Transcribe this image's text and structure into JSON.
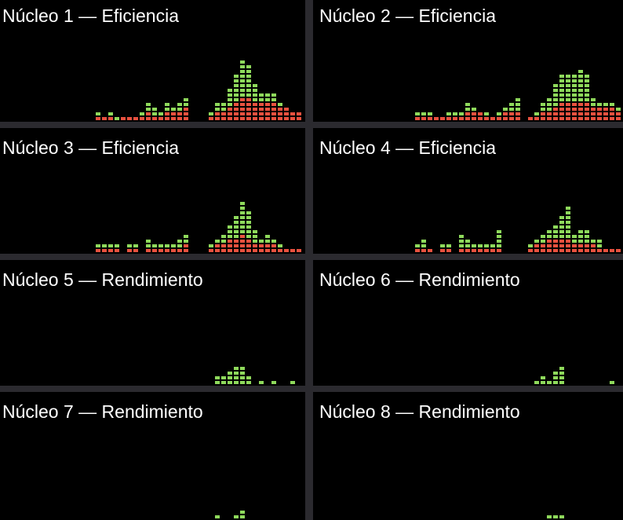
{
  "colors": {
    "user": "#8ed95b",
    "system": "#e8513f",
    "background": "#000000",
    "separator": "#2b2a2f"
  },
  "panels": [
    {
      "title": "Núcleo 1 — Eficiencia",
      "history": [
        [
          0,
          0
        ],
        [
          0,
          0
        ],
        [
          0,
          0
        ],
        [
          0,
          0
        ],
        [
          0,
          0
        ],
        [
          0,
          0
        ],
        [
          0,
          0
        ],
        [
          0,
          0
        ],
        [
          0,
          0
        ],
        [
          0,
          0
        ],
        [
          0,
          0
        ],
        [
          0,
          0
        ],
        [
          0,
          0
        ],
        [
          0,
          0
        ],
        [
          0,
          0
        ],
        [
          1,
          1
        ],
        [
          1,
          0
        ],
        [
          1,
          1
        ],
        [
          0,
          1
        ],
        [
          1,
          0
        ],
        [
          1,
          0
        ],
        [
          1,
          0
        ],
        [
          1,
          1
        ],
        [
          2,
          2
        ],
        [
          1,
          2
        ],
        [
          1,
          1
        ],
        [
          2,
          2
        ],
        [
          2,
          1
        ],
        [
          2,
          2
        ],
        [
          3,
          2
        ],
        [
          0,
          0
        ],
        [
          0,
          0
        ],
        [
          0,
          0
        ],
        [
          1,
          1
        ],
        [
          2,
          2
        ],
        [
          2,
          2
        ],
        [
          3,
          4
        ],
        [
          4,
          6
        ],
        [
          5,
          8
        ],
        [
          5,
          7
        ],
        [
          4,
          4
        ],
        [
          4,
          2
        ],
        [
          4,
          2
        ],
        [
          4,
          2
        ],
        [
          3,
          1
        ],
        [
          3,
          0
        ],
        [
          2,
          0
        ],
        [
          2,
          0
        ],
        [
          1,
          0
        ]
      ]
    },
    {
      "title": "Núcleo 2 — Eficiencia",
      "history": [
        [
          0,
          0
        ],
        [
          0,
          0
        ],
        [
          0,
          0
        ],
        [
          0,
          0
        ],
        [
          0,
          0
        ],
        [
          0,
          0
        ],
        [
          0,
          0
        ],
        [
          0,
          0
        ],
        [
          0,
          0
        ],
        [
          0,
          0
        ],
        [
          0,
          0
        ],
        [
          0,
          0
        ],
        [
          0,
          0
        ],
        [
          0,
          0
        ],
        [
          0,
          0
        ],
        [
          0,
          0
        ],
        [
          1,
          1
        ],
        [
          1,
          1
        ],
        [
          1,
          1
        ],
        [
          1,
          0
        ],
        [
          1,
          0
        ],
        [
          1,
          1
        ],
        [
          1,
          1
        ],
        [
          1,
          1
        ],
        [
          2,
          2
        ],
        [
          2,
          1
        ],
        [
          2,
          0
        ],
        [
          1,
          1
        ],
        [
          1,
          0
        ],
        [
          1,
          1
        ],
        [
          2,
          1
        ],
        [
          2,
          2
        ],
        [
          2,
          3
        ],
        [
          0,
          0
        ],
        [
          1,
          0
        ],
        [
          1,
          1
        ],
        [
          2,
          2
        ],
        [
          2,
          3
        ],
        [
          3,
          5
        ],
        [
          4,
          6
        ],
        [
          4,
          6
        ],
        [
          4,
          6
        ],
        [
          4,
          7
        ],
        [
          4,
          6
        ],
        [
          3,
          2
        ],
        [
          3,
          1
        ],
        [
          3,
          1
        ],
        [
          3,
          1
        ],
        [
          2,
          1
        ],
        [
          1,
          1
        ],
        [
          1,
          1
        ],
        [
          1,
          0
        ],
        [
          1,
          0
        ],
        [
          1,
          0
        ],
        [
          1,
          0
        ],
        [
          1,
          0
        ]
      ]
    },
    {
      "title": "Núcleo 3 — Eficiencia",
      "history": [
        [
          0,
          0
        ],
        [
          0,
          0
        ],
        [
          0,
          0
        ],
        [
          0,
          0
        ],
        [
          0,
          0
        ],
        [
          0,
          0
        ],
        [
          0,
          0
        ],
        [
          0,
          0
        ],
        [
          0,
          0
        ],
        [
          0,
          0
        ],
        [
          0,
          0
        ],
        [
          0,
          0
        ],
        [
          0,
          0
        ],
        [
          0,
          0
        ],
        [
          0,
          0
        ],
        [
          1,
          1
        ],
        [
          1,
          1
        ],
        [
          1,
          1
        ],
        [
          1,
          1
        ],
        [
          0,
          0
        ],
        [
          1,
          1
        ],
        [
          1,
          1
        ],
        [
          0,
          0
        ],
        [
          1,
          2
        ],
        [
          1,
          1
        ],
        [
          1,
          1
        ],
        [
          1,
          1
        ],
        [
          1,
          1
        ],
        [
          1,
          2
        ],
        [
          2,
          2
        ],
        [
          0,
          0
        ],
        [
          0,
          0
        ],
        [
          0,
          0
        ],
        [
          1,
          1
        ],
        [
          2,
          1
        ],
        [
          2,
          2
        ],
        [
          3,
          3
        ],
        [
          3,
          5
        ],
        [
          4,
          7
        ],
        [
          3,
          6
        ],
        [
          2,
          3
        ],
        [
          2,
          1
        ],
        [
          2,
          2
        ],
        [
          2,
          1
        ],
        [
          1,
          1
        ],
        [
          1,
          0
        ],
        [
          1,
          0
        ],
        [
          1,
          0
        ]
      ]
    },
    {
      "title": "Núcleo 4 — Eficiencia",
      "history": [
        [
          0,
          0
        ],
        [
          0,
          0
        ],
        [
          0,
          0
        ],
        [
          0,
          0
        ],
        [
          0,
          0
        ],
        [
          0,
          0
        ],
        [
          0,
          0
        ],
        [
          0,
          0
        ],
        [
          0,
          0
        ],
        [
          0,
          0
        ],
        [
          0,
          0
        ],
        [
          0,
          0
        ],
        [
          0,
          0
        ],
        [
          0,
          0
        ],
        [
          0,
          0
        ],
        [
          0,
          0
        ],
        [
          1,
          1
        ],
        [
          1,
          2
        ],
        [
          1,
          0
        ],
        [
          0,
          0
        ],
        [
          1,
          1
        ],
        [
          1,
          1
        ],
        [
          0,
          0
        ],
        [
          1,
          3
        ],
        [
          1,
          2
        ],
        [
          1,
          1
        ],
        [
          1,
          1
        ],
        [
          1,
          1
        ],
        [
          1,
          1
        ],
        [
          1,
          4
        ],
        [
          0,
          0
        ],
        [
          0,
          0
        ],
        [
          0,
          0
        ],
        [
          0,
          0
        ],
        [
          1,
          1
        ],
        [
          2,
          1
        ],
        [
          2,
          2
        ],
        [
          3,
          2
        ],
        [
          3,
          3
        ],
        [
          3,
          5
        ],
        [
          3,
          7
        ],
        [
          2,
          2
        ],
        [
          2,
          3
        ],
        [
          2,
          3
        ],
        [
          2,
          1
        ],
        [
          1,
          2
        ],
        [
          1,
          0
        ],
        [
          1,
          0
        ],
        [
          1,
          0
        ],
        [
          1,
          0
        ]
      ]
    },
    {
      "title": "Núcleo 5 — Rendimiento",
      "history": [
        [
          0,
          0
        ],
        [
          0,
          0
        ],
        [
          0,
          0
        ],
        [
          0,
          0
        ],
        [
          0,
          0
        ],
        [
          0,
          0
        ],
        [
          0,
          0
        ],
        [
          0,
          0
        ],
        [
          0,
          0
        ],
        [
          0,
          0
        ],
        [
          0,
          0
        ],
        [
          0,
          0
        ],
        [
          0,
          0
        ],
        [
          0,
          0
        ],
        [
          0,
          0
        ],
        [
          0,
          0
        ],
        [
          0,
          0
        ],
        [
          0,
          0
        ],
        [
          0,
          0
        ],
        [
          0,
          0
        ],
        [
          0,
          0
        ],
        [
          0,
          0
        ],
        [
          0,
          0
        ],
        [
          0,
          0
        ],
        [
          0,
          0
        ],
        [
          0,
          0
        ],
        [
          0,
          0
        ],
        [
          0,
          0
        ],
        [
          0,
          0
        ],
        [
          0,
          0
        ],
        [
          0,
          0
        ],
        [
          0,
          0
        ],
        [
          0,
          0
        ],
        [
          0,
          0
        ],
        [
          0,
          2
        ],
        [
          0,
          2
        ],
        [
          0,
          3
        ],
        [
          0,
          4
        ],
        [
          0,
          4
        ],
        [
          0,
          2
        ],
        [
          0,
          0
        ],
        [
          0,
          1
        ],
        [
          0,
          0
        ],
        [
          0,
          1
        ],
        [
          0,
          0
        ],
        [
          0,
          0
        ],
        [
          0,
          1
        ]
      ]
    },
    {
      "title": "Núcleo 6 — Rendimiento",
      "history": [
        [
          0,
          0
        ],
        [
          0,
          0
        ],
        [
          0,
          0
        ],
        [
          0,
          0
        ],
        [
          0,
          0
        ],
        [
          0,
          0
        ],
        [
          0,
          0
        ],
        [
          0,
          0
        ],
        [
          0,
          0
        ],
        [
          0,
          0
        ],
        [
          0,
          0
        ],
        [
          0,
          0
        ],
        [
          0,
          0
        ],
        [
          0,
          0
        ],
        [
          0,
          0
        ],
        [
          0,
          0
        ],
        [
          0,
          0
        ],
        [
          0,
          0
        ],
        [
          0,
          0
        ],
        [
          0,
          0
        ],
        [
          0,
          0
        ],
        [
          0,
          0
        ],
        [
          0,
          0
        ],
        [
          0,
          0
        ],
        [
          0,
          0
        ],
        [
          0,
          0
        ],
        [
          0,
          0
        ],
        [
          0,
          0
        ],
        [
          0,
          0
        ],
        [
          0,
          0
        ],
        [
          0,
          0
        ],
        [
          0,
          0
        ],
        [
          0,
          0
        ],
        [
          0,
          0
        ],
        [
          0,
          0
        ],
        [
          0,
          1
        ],
        [
          0,
          2
        ],
        [
          0,
          1
        ],
        [
          0,
          3
        ],
        [
          0,
          4
        ],
        [
          0,
          0
        ],
        [
          0,
          0
        ],
        [
          0,
          0
        ],
        [
          0,
          0
        ],
        [
          0,
          0
        ],
        [
          0,
          0
        ],
        [
          0,
          0
        ],
        [
          0,
          1
        ]
      ]
    },
    {
      "title": "Núcleo 7 — Rendimiento",
      "history": [
        [
          0,
          0
        ],
        [
          0,
          0
        ],
        [
          0,
          0
        ],
        [
          0,
          0
        ],
        [
          0,
          0
        ],
        [
          0,
          0
        ],
        [
          0,
          0
        ],
        [
          0,
          0
        ],
        [
          0,
          0
        ],
        [
          0,
          0
        ],
        [
          0,
          0
        ],
        [
          0,
          0
        ],
        [
          0,
          0
        ],
        [
          0,
          0
        ],
        [
          0,
          0
        ],
        [
          0,
          0
        ],
        [
          0,
          0
        ],
        [
          0,
          0
        ],
        [
          0,
          0
        ],
        [
          0,
          0
        ],
        [
          0,
          0
        ],
        [
          0,
          0
        ],
        [
          0,
          0
        ],
        [
          0,
          0
        ],
        [
          0,
          0
        ],
        [
          0,
          0
        ],
        [
          0,
          0
        ],
        [
          0,
          0
        ],
        [
          0,
          0
        ],
        [
          0,
          0
        ],
        [
          0,
          0
        ],
        [
          0,
          0
        ],
        [
          0,
          0
        ],
        [
          0,
          0
        ],
        [
          0,
          1
        ],
        [
          0,
          0
        ],
        [
          0,
          0
        ],
        [
          0,
          1
        ],
        [
          0,
          2
        ]
      ]
    },
    {
      "title": "Núcleo 8 — Rendimiento",
      "history": [
        [
          0,
          0
        ],
        [
          0,
          0
        ],
        [
          0,
          0
        ],
        [
          0,
          0
        ],
        [
          0,
          0
        ],
        [
          0,
          0
        ],
        [
          0,
          0
        ],
        [
          0,
          0
        ],
        [
          0,
          0
        ],
        [
          0,
          0
        ],
        [
          0,
          0
        ],
        [
          0,
          0
        ],
        [
          0,
          0
        ],
        [
          0,
          0
        ],
        [
          0,
          0
        ],
        [
          0,
          0
        ],
        [
          0,
          0
        ],
        [
          0,
          0
        ],
        [
          0,
          0
        ],
        [
          0,
          0
        ],
        [
          0,
          0
        ],
        [
          0,
          0
        ],
        [
          0,
          0
        ],
        [
          0,
          0
        ],
        [
          0,
          0
        ],
        [
          0,
          0
        ],
        [
          0,
          0
        ],
        [
          0,
          0
        ],
        [
          0,
          0
        ],
        [
          0,
          0
        ],
        [
          0,
          0
        ],
        [
          0,
          0
        ],
        [
          0,
          0
        ],
        [
          0,
          0
        ],
        [
          0,
          0
        ],
        [
          0,
          0
        ],
        [
          0,
          0
        ],
        [
          0,
          1
        ],
        [
          0,
          1
        ],
        [
          0,
          1
        ]
      ]
    }
  ]
}
